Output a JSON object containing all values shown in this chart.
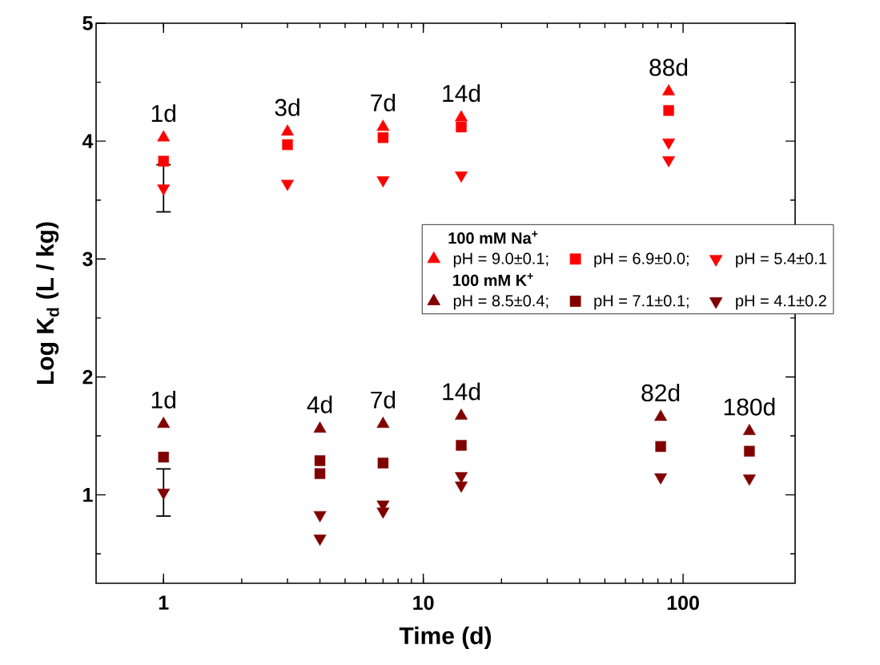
{
  "chart_data": {
    "type": "scatter",
    "xlabel": "Time (d)",
    "ylabel": "Log K$_{d}$ (L / kg)",
    "log": "x",
    "xlim": [
      0.55,
      270
    ],
    "xticks": [
      1,
      10,
      100
    ],
    "ylim": [
      0.25,
      5
    ],
    "yticks": [
      1,
      2,
      3,
      4,
      5
    ],
    "grid": false,
    "legend": "right",
    "annotations": [
      "100 mM Na$^{+}$",
      "100 mM K$^{+}$",
      "1d",
      "3d",
      "7d",
      "14d",
      "88d",
      "1d",
      "4d",
      "7d",
      "14d",
      "82d",
      "180d"
    ],
    "series": [
      {
        "name": "pH = 9.0±0.1;",
        "color": "#ff0000",
        "marker": "triangle",
        "x": [
          1,
          3,
          7,
          14,
          88
        ],
        "values": [
          4.03,
          4.08,
          4.12,
          4.2,
          4.42
        ]
      },
      {
        "name": "pH = 6.9±0.0;",
        "color": "#ff0000",
        "marker": "square",
        "x": [
          1,
          3,
          7,
          14,
          88
        ],
        "values": [
          3.83,
          3.97,
          4.03,
          4.12,
          4.26
        ]
      },
      {
        "name": "pH = 5.4±0.1",
        "color": "#ff0000",
        "marker": "triangle-down",
        "x": [
          1,
          3,
          7,
          14,
          88,
          88
        ],
        "values": [
          3.6,
          3.64,
          3.67,
          3.71,
          3.99,
          3.84
        ],
        "errors": [
          0.2,
          null,
          null,
          null,
          null,
          null
        ]
      },
      {
        "name": "pH = 8.5±0.4;",
        "color": "#800000",
        "marker": "triangle",
        "x": [
          1,
          4,
          7,
          14,
          82,
          180
        ],
        "values": [
          1.6,
          1.56,
          1.6,
          1.67,
          1.66,
          1.54
        ]
      },
      {
        "name": "pH = 7.1±0.1;",
        "color": "#800000",
        "marker": "square",
        "x": [
          1,
          4,
          4,
          7,
          14,
          82,
          180
        ],
        "values": [
          1.32,
          1.29,
          1.18,
          1.27,
          1.42,
          1.41,
          1.37
        ]
      },
      {
        "name": "pH = 4.1±0.2",
        "color": "#800000",
        "marker": "triangle-down",
        "x": [
          1,
          4,
          4,
          7,
          7,
          14,
          14,
          82,
          180
        ],
        "values": [
          1.02,
          0.83,
          0.63,
          0.92,
          0.86,
          1.16,
          1.08,
          1.15,
          1.14
        ],
        "errors": [
          0.2,
          null,
          null,
          null,
          null,
          null,
          null,
          null,
          null
        ]
      }
    ]
  }
}
